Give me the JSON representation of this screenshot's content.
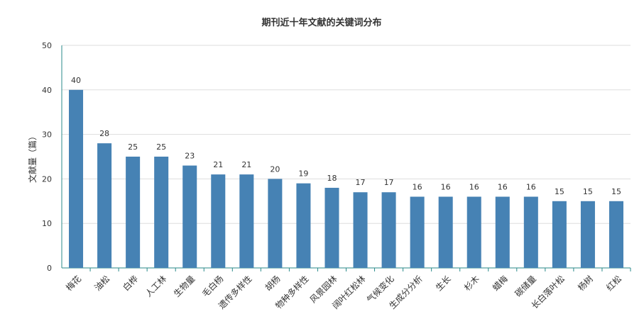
{
  "chart_data": {
    "type": "bar",
    "title": "期刊近十年文献的关键词分布",
    "xlabel": "",
    "ylabel": "文献量（篇）",
    "ylim": [
      0,
      50
    ],
    "yticks": [
      0,
      10,
      20,
      30,
      40,
      50
    ],
    "grid": true,
    "color": "#4682b4",
    "categories": [
      "梅花",
      "油松",
      "白桦",
      "人工林",
      "生物量",
      "毛白杨",
      "遗传多样性",
      "胡杨",
      "物种多样性",
      "风景园林",
      "阔叶红松林",
      "气候变化",
      "生成分分析",
      "生长",
      "杉木",
      "蜡梅",
      "碳储量",
      "长白落叶松",
      "杨树",
      "红松"
    ],
    "values": [
      40,
      28,
      25,
      25,
      23,
      21,
      21,
      20,
      19,
      18,
      17,
      17,
      16,
      16,
      16,
      16,
      16,
      15,
      15,
      15
    ]
  }
}
